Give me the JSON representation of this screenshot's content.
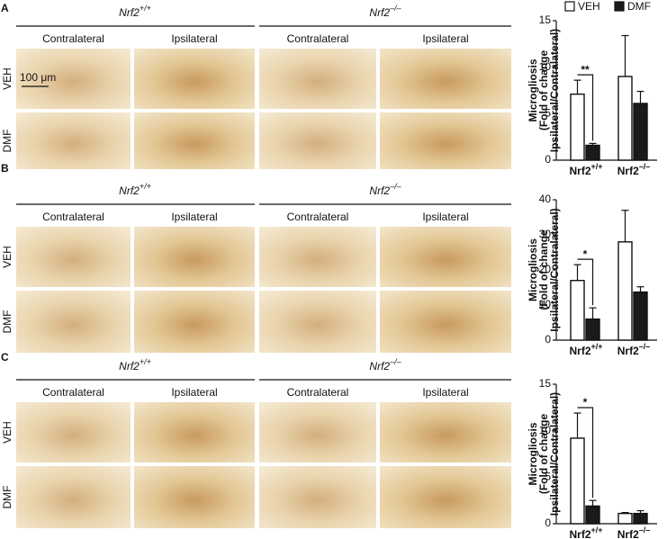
{
  "panels": [
    {
      "letter": "A",
      "genotypes": [
        {
          "base": "Nrf2",
          "sup": "+/+"
        },
        {
          "base": "Nrf2",
          "sup": "–/–"
        }
      ],
      "columns": [
        "Contralateral",
        "Ipsilateral",
        "Contralateral",
        "Ipsilateral"
      ],
      "rows": [
        "VEH",
        "DMF"
      ],
      "scale_bar": "100 μm"
    },
    {
      "letter": "B",
      "genotypes": [
        {
          "base": "Nrf2",
          "sup": "+/+"
        },
        {
          "base": "Nrf2",
          "sup": "–/–"
        }
      ],
      "columns": [
        "Contralateral",
        "Ipsilateral",
        "Contralateral",
        "Ipsilateral"
      ],
      "rows": [
        "VEH",
        "DMF"
      ]
    },
    {
      "letter": "C",
      "genotypes": [
        {
          "base": "Nrf2",
          "sup": "+/+"
        },
        {
          "base": "Nrf2",
          "sup": "–/–"
        }
      ],
      "columns": [
        "Contralateral",
        "Ipsilateral",
        "Contralateral",
        "Ipsilateral"
      ],
      "rows": [
        "VEH",
        "DMF"
      ]
    }
  ],
  "chart_data": [
    {
      "type": "bar",
      "ylabel": [
        "Microgliosis",
        "(Fold of change",
        "Ipsilateral/Contralateral)"
      ],
      "categories": [
        "Nrf2",
        "Nrf2"
      ],
      "category_superscripts": [
        "+/+",
        "–/–"
      ],
      "series": [
        {
          "name": "VEH",
          "color": "#ffffff",
          "values": [
            7.1,
            9.0
          ],
          "errors": [
            1.5,
            4.4
          ]
        },
        {
          "name": "DMF",
          "color": "#1a1a1a",
          "values": [
            1.6,
            6.1
          ],
          "errors": [
            0.2,
            1.3
          ]
        }
      ],
      "ylim": [
        0,
        15
      ],
      "yticks": [
        0,
        5,
        10,
        15
      ],
      "significance": "**",
      "legend": "top"
    },
    {
      "type": "bar",
      "ylabel": [
        "Microgliosis",
        "(Fold of change",
        "Ipsilateral/Contralateral)"
      ],
      "categories": [
        "Nrf2",
        "Nrf2"
      ],
      "category_superscripts": [
        "+/+",
        "–/–"
      ],
      "series": [
        {
          "color": "#ffffff",
          "values": [
            17,
            28
          ],
          "errors": [
            4.5,
            9
          ]
        },
        {
          "color": "#1a1a1a",
          "values": [
            6,
            13.7
          ],
          "errors": [
            3.2,
            1.5
          ]
        }
      ],
      "ylim": [
        0,
        40
      ],
      "yticks": [
        0,
        10,
        20,
        30,
        40
      ],
      "significance": "*"
    },
    {
      "type": "bar",
      "ylabel": [
        "Microgliosis",
        "(Fold of change",
        "Ipsilateral/Contralateral)"
      ],
      "categories": [
        "Nrf2",
        "Nrf2"
      ],
      "category_superscripts": [
        "+/+",
        "–/–"
      ],
      "series": [
        {
          "color": "#ffffff",
          "values": [
            9.2,
            1.1
          ],
          "errors": [
            2.7,
            0.1
          ]
        },
        {
          "color": "#1a1a1a",
          "values": [
            1.9,
            1.1
          ],
          "errors": [
            0.6,
            0.3
          ]
        }
      ],
      "ylim": [
        0,
        15
      ],
      "yticks": [
        0,
        5,
        10,
        15
      ],
      "significance": "*"
    }
  ]
}
